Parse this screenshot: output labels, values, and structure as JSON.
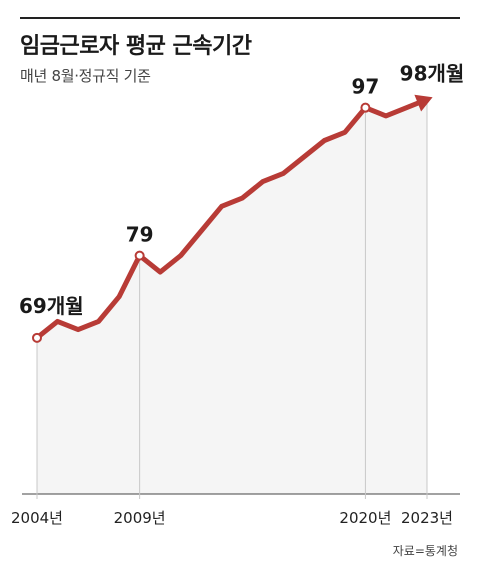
{
  "title": "임금근로자 평균 근속기간",
  "subtitle": "매년 8월·정규직 기준",
  "source": "자료=통계청",
  "chart_data": {
    "type": "area",
    "title": "임금근로자 평균 근속기간",
    "subtitle": "매년 8월·정규직 기준",
    "xlabel": "",
    "ylabel": "",
    "x": [
      2004,
      2005,
      2006,
      2007,
      2008,
      2009,
      2010,
      2011,
      2012,
      2013,
      2014,
      2015,
      2016,
      2017,
      2018,
      2019,
      2020,
      2021,
      2022,
      2023
    ],
    "values": [
      69,
      71,
      70,
      71,
      74,
      79,
      77,
      79,
      82,
      85,
      86,
      88,
      89,
      91,
      93,
      94,
      97,
      96,
      97,
      98
    ],
    "ylim": [
      50,
      100
    ],
    "xticks": [
      {
        "x": 2004,
        "label": "2004년"
      },
      {
        "x": 2009,
        "label": "2009년"
      },
      {
        "x": 2020,
        "label": "2020년"
      },
      {
        "x": 2023,
        "label": "2023년"
      }
    ],
    "data_labels": [
      {
        "x": 2004,
        "text": "69개월"
      },
      {
        "x": 2009,
        "text": "79"
      },
      {
        "x": 2020,
        "text": "97"
      },
      {
        "x": 2023,
        "text": "98개월"
      }
    ],
    "colors": {
      "line": "#b83b36",
      "area": "#f5f5f5",
      "guide": "#c8c8c8"
    },
    "grid": false
  }
}
